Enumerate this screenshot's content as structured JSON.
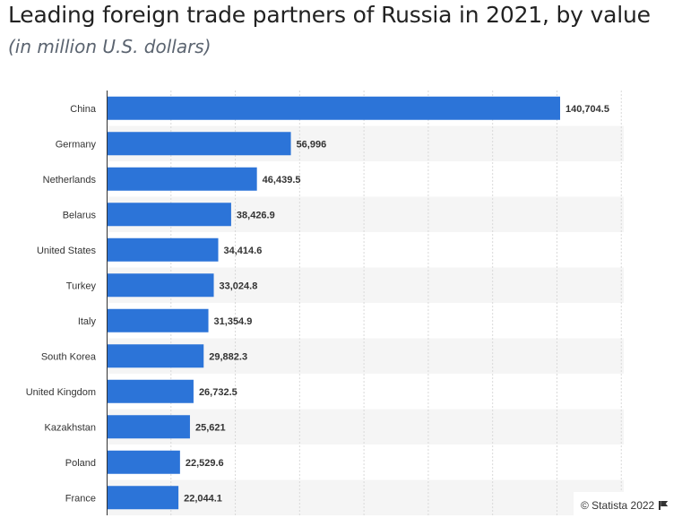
{
  "header": {
    "title": "Leading foreign trade partners of Russia in 2021, by value",
    "subtitle": "(in million U.S. dollars)"
  },
  "footer": {
    "credit": "© Statista 2022"
  },
  "colors": {
    "bar": "#2c74d8",
    "stripe": "#f5f5f5",
    "grid": "#d9d9d9"
  },
  "chart_data": {
    "type": "bar",
    "orientation": "horizontal",
    "categories": [
      "China",
      "Germany",
      "Netherlands",
      "Belarus",
      "United States",
      "Turkey",
      "Italy",
      "South Korea",
      "United Kingdom",
      "Kazakhstan",
      "Poland",
      "France"
    ],
    "values": [
      140704.5,
      56996,
      46439.5,
      38426.9,
      34414.6,
      33024.8,
      31354.9,
      29882.3,
      26732.5,
      25621,
      22529.6,
      22044.1
    ],
    "value_labels": [
      "140,704.5",
      "56,996",
      "46,439.5",
      "38,426.9",
      "34,414.6",
      "33,024.8",
      "31,354.9",
      "29,882.3",
      "26,732.5",
      "25,621",
      "22,529.6",
      "22,044.1"
    ],
    "xlim": [
      0,
      160000
    ],
    "grid": true,
    "title": "Leading foreign trade partners of Russia in 2021, by value",
    "subtitle": "(in million U.S. dollars)"
  }
}
